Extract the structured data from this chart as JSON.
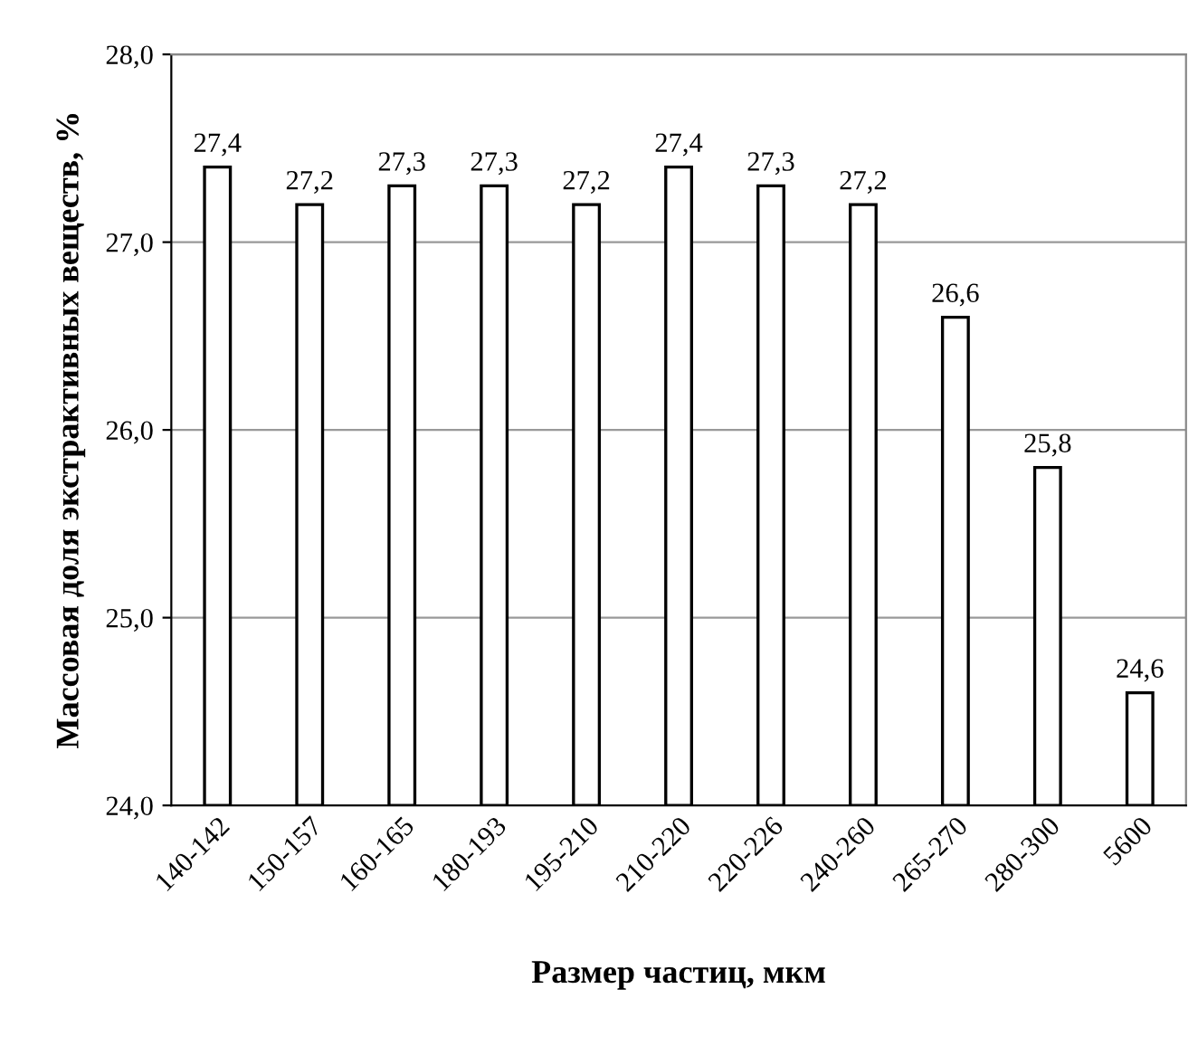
{
  "chart_data": {
    "type": "bar",
    "xlabel": "Размер частиц, мкм",
    "ylabel": "Массовая доля экстрактивных веществ, %",
    "categories": [
      "140-142",
      "150-157",
      "160-165",
      "180-193",
      "195-210",
      "210-220",
      "220-226",
      "240-260",
      "265-270",
      "280-300",
      "5600"
    ],
    "values": [
      27.4,
      27.2,
      27.3,
      27.3,
      27.2,
      27.4,
      27.3,
      27.2,
      26.6,
      25.8,
      24.6
    ],
    "value_labels": [
      "27,4",
      "27,2",
      "27,3",
      "27,3",
      "27,2",
      "27,4",
      "27,3",
      "27,2",
      "26,6",
      "25,8",
      "24,6"
    ],
    "color": "#ffffff",
    "ylim": [
      24,
      28
    ],
    "yticks": [
      {
        "value": 24,
        "label": "24,0"
      },
      {
        "value": 25,
        "label": "25,0"
      },
      {
        "value": 26,
        "label": "26,0"
      },
      {
        "value": 27,
        "label": "27,0"
      },
      {
        "value": 28,
        "label": "28,0"
      }
    ],
    "grid": "y"
  }
}
